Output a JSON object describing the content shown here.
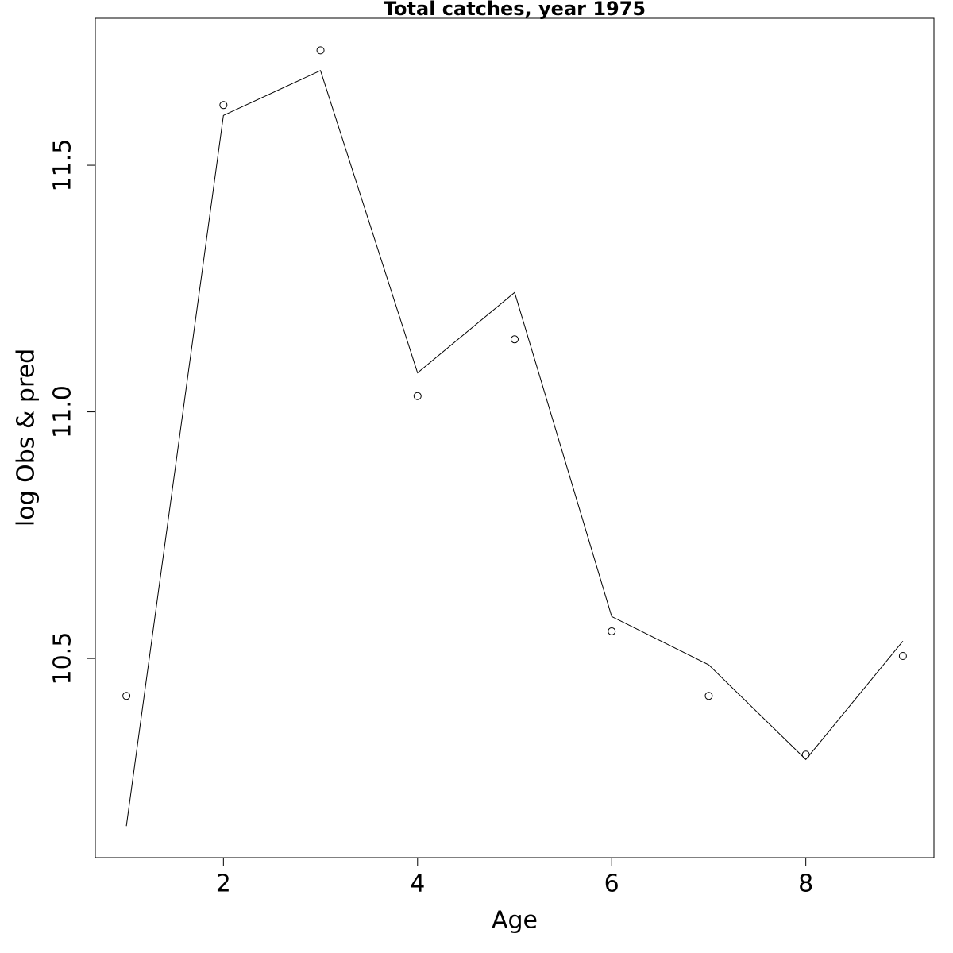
{
  "chart_data": {
    "type": "line",
    "title": "Total catches, year 1975",
    "x_label": "Age",
    "y_label": "log Obs & pred",
    "x": [
      1,
      2,
      3,
      4,
      5,
      6,
      7,
      8,
      9
    ],
    "series": [
      {
        "style": "points",
        "color": "#000000",
        "values": [
          10.424,
          11.622,
          11.733,
          11.032,
          11.147,
          10.555,
          10.424,
          10.305,
          10.505
        ]
      },
      {
        "style": "line",
        "color": "#000000",
        "values": [
          10.16,
          11.601,
          11.692,
          11.079,
          11.242,
          10.585,
          10.487,
          10.295,
          10.535
        ]
      }
    ],
    "xlim": [
      0.68,
      9.32
    ],
    "xticks": [
      2,
      4,
      6,
      8
    ],
    "ylim": [
      10.096,
      11.798
    ],
    "yticks": [
      10.5,
      {
        "value": 11,
        "label": "11.0"
      },
      11.5
    ]
  }
}
